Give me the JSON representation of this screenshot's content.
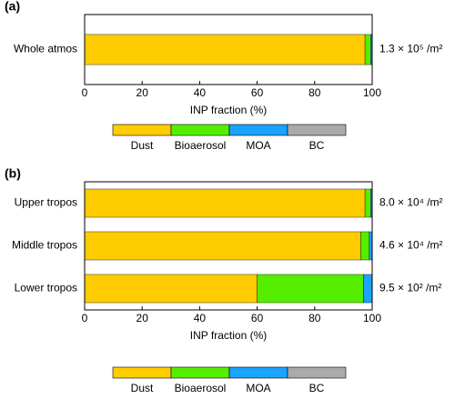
{
  "chart_data": [
    {
      "type": "bar",
      "orientation": "horizontal",
      "stacked": true,
      "title": "(a)",
      "categories": [
        "Whole atmos"
      ],
      "series": [
        {
          "name": "Dust",
          "color": "#ffcc00",
          "values": [
            97.5
          ]
        },
        {
          "name": "Bioaerosol",
          "color": "#55ee00",
          "values": [
            2
          ]
        },
        {
          "name": "MOA",
          "color": "#1aa3ff",
          "values": [
            0.5
          ]
        },
        {
          "name": "BC",
          "color": "#aaaaaa",
          "values": [
            0
          ]
        }
      ],
      "annotations": [
        "1.3 × 10⁵ /m²"
      ],
      "xlabel": "INP fraction (%)",
      "xlim": [
        0,
        100
      ],
      "xticks": [
        0,
        20,
        40,
        60,
        80,
        100
      ]
    },
    {
      "type": "bar",
      "orientation": "horizontal",
      "stacked": true,
      "title": "(b)",
      "categories": [
        "Upper tropos",
        "Middle tropos",
        "Lower tropos"
      ],
      "series": [
        {
          "name": "Dust",
          "color": "#ffcc00",
          "values": [
            97.5,
            96,
            60
          ]
        },
        {
          "name": "Bioaerosol",
          "color": "#55ee00",
          "values": [
            2,
            3,
            37
          ]
        },
        {
          "name": "MOA",
          "color": "#1aa3ff",
          "values": [
            0.5,
            1,
            3
          ]
        },
        {
          "name": "BC",
          "color": "#aaaaaa",
          "values": [
            0,
            0,
            0
          ]
        }
      ],
      "annotations": [
        "8.0 × 10⁴ /m²",
        "4.6 × 10⁴ /m²",
        "9.5 × 10² /m²"
      ],
      "xlabel": "INP fraction (%)",
      "xlim": [
        0,
        100
      ],
      "xticks": [
        0,
        20,
        40,
        60,
        80,
        100
      ]
    }
  ]
}
